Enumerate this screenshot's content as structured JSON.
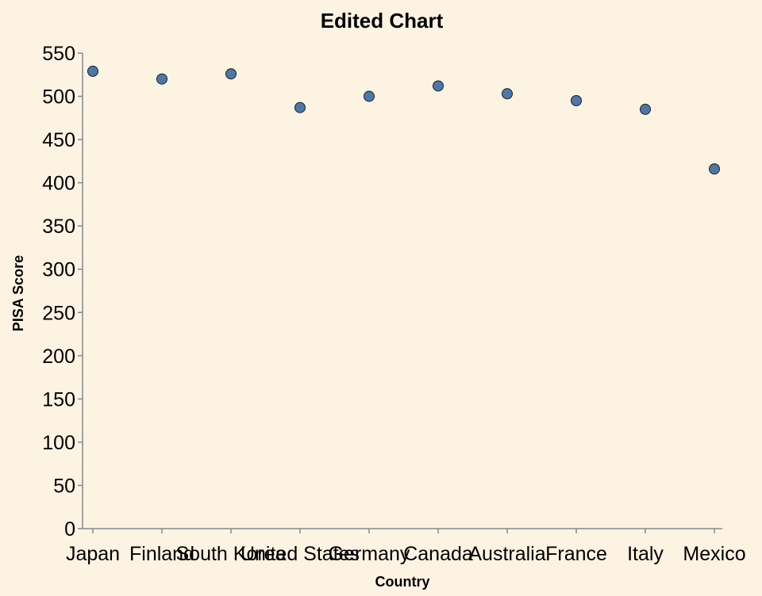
{
  "chart_data": {
    "type": "scatter",
    "title": "Edited Chart",
    "xlabel": "Country",
    "ylabel": "PISA Score",
    "categories": [
      "Japan",
      "Finland",
      "South Korea",
      "United States",
      "Germany",
      "Canada",
      "Australia",
      "France",
      "Italy",
      "Mexico"
    ],
    "values": [
      529,
      520,
      526,
      487,
      500,
      512,
      503,
      495,
      485,
      416
    ],
    "ylim": [
      0,
      550
    ],
    "yticks": [
      0,
      50,
      100,
      150,
      200,
      250,
      300,
      350,
      400,
      450,
      500,
      550
    ],
    "grid": false,
    "point_color": "#4c78a8",
    "background": "#fdf3e3"
  }
}
